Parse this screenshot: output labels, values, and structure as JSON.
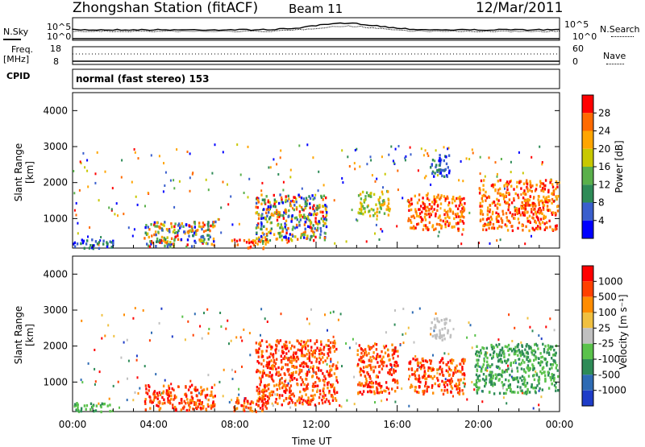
{
  "header": {
    "station": "Zhongshan Station (fitACF)",
    "beam": "Beam 11",
    "date": "12/Mar/2011"
  },
  "summary_panels": {
    "nsky_label": "N.Sky",
    "nsky_ticks": [
      "10^5",
      "10^0"
    ],
    "nsearch_label": "N.Search",
    "nsearch_ticks": [
      "10^5",
      "10^0"
    ],
    "freq_label": "Freq.",
    "freq_unit": "[MHz]",
    "freq_ticks": [
      "18",
      "8"
    ],
    "nave_label": "Nave",
    "nave_ticks": [
      "60",
      "0"
    ],
    "cpid_label": "CPID",
    "cpid_text": "normal (fast stereo) 153"
  },
  "chart_data": [
    {
      "type": "heatmap",
      "name": "power",
      "ylabel": "Slant Range [km]",
      "ylim": [
        180,
        4500
      ],
      "y_ticks": [
        "4000",
        "3000",
        "2000",
        "1000"
      ],
      "x_ticks": [
        "00:00",
        "04:00",
        "08:00",
        "12:00",
        "16:00",
        "20:00",
        "00:00"
      ],
      "colorbar_label": "Power [dB]",
      "colorbar_ticks": [
        "28",
        "24",
        "20",
        "16",
        "12",
        "8",
        "4"
      ],
      "colors": [
        "#0000ff",
        "#3a5fcd",
        "#2e8b57",
        "#5ab04b",
        "#c8c800",
        "#ffa500",
        "#ff6a00",
        "#ff0000"
      ],
      "regions": [
        {
          "t0": 0.0,
          "t1": 2.0,
          "r0": 200,
          "r1": 450,
          "v": "low"
        },
        {
          "t0": 3.5,
          "t1": 7.0,
          "r0": 250,
          "r1": 950,
          "v": "mixed"
        },
        {
          "t0": 7.8,
          "t1": 9.6,
          "r0": 200,
          "r1": 450,
          "v": "high"
        },
        {
          "t0": 9.0,
          "t1": 12.5,
          "r0": 400,
          "r1": 1700,
          "v": "mixed"
        },
        {
          "t0": 14.0,
          "t1": 15.6,
          "r0": 1100,
          "r1": 1800,
          "v": "mid"
        },
        {
          "t0": 16.5,
          "t1": 19.3,
          "r0": 700,
          "r1": 1700,
          "v": "high"
        },
        {
          "t0": 20.0,
          "t1": 23.9,
          "r0": 700,
          "r1": 2100,
          "v": "high"
        },
        {
          "t0": 17.6,
          "t1": 18.6,
          "r0": 2200,
          "r1": 2800,
          "v": "low"
        }
      ]
    },
    {
      "type": "heatmap",
      "name": "velocity",
      "ylabel": "Slant Range [km]",
      "ylim": [
        180,
        4500
      ],
      "y_ticks": [
        "4000",
        "3000",
        "2000",
        "1000"
      ],
      "x_ticks": [
        "00:00",
        "04:00",
        "08:00",
        "12:00",
        "16:00",
        "20:00",
        "00:00"
      ],
      "xlabel": "Time UT",
      "colorbar_label": "Velocity [m s⁻¹]",
      "colorbar_ticks": [
        "1000",
        "500",
        "100",
        "25",
        "-25",
        "-100",
        "-500",
        "-1000"
      ],
      "colors": [
        "#1e3cc8",
        "#2e6bb4",
        "#2e8b57",
        "#5ac24b",
        "#c0c0c0",
        "#f0c040",
        "#ff8c00",
        "#ff4000",
        "#ff0000"
      ],
      "regions": [
        {
          "t0": 0.0,
          "t1": 2.0,
          "r0": 200,
          "r1": 450,
          "v": "green"
        },
        {
          "t0": 3.5,
          "t1": 7.0,
          "r0": 250,
          "r1": 950,
          "v": "orange"
        },
        {
          "t0": 7.8,
          "t1": 9.6,
          "r0": 200,
          "r1": 600,
          "v": "orange"
        },
        {
          "t0": 9.0,
          "t1": 13.0,
          "r0": 400,
          "r1": 2200,
          "v": "orange"
        },
        {
          "t0": 14.0,
          "t1": 16.0,
          "r0": 700,
          "r1": 2100,
          "v": "orange"
        },
        {
          "t0": 16.5,
          "t1": 19.3,
          "r0": 700,
          "r1": 1700,
          "v": "orange"
        },
        {
          "t0": 17.6,
          "t1": 18.6,
          "r0": 2200,
          "r1": 2800,
          "v": "grey"
        },
        {
          "t0": 19.8,
          "t1": 23.9,
          "r0": 700,
          "r1": 2100,
          "v": "green"
        }
      ]
    }
  ]
}
